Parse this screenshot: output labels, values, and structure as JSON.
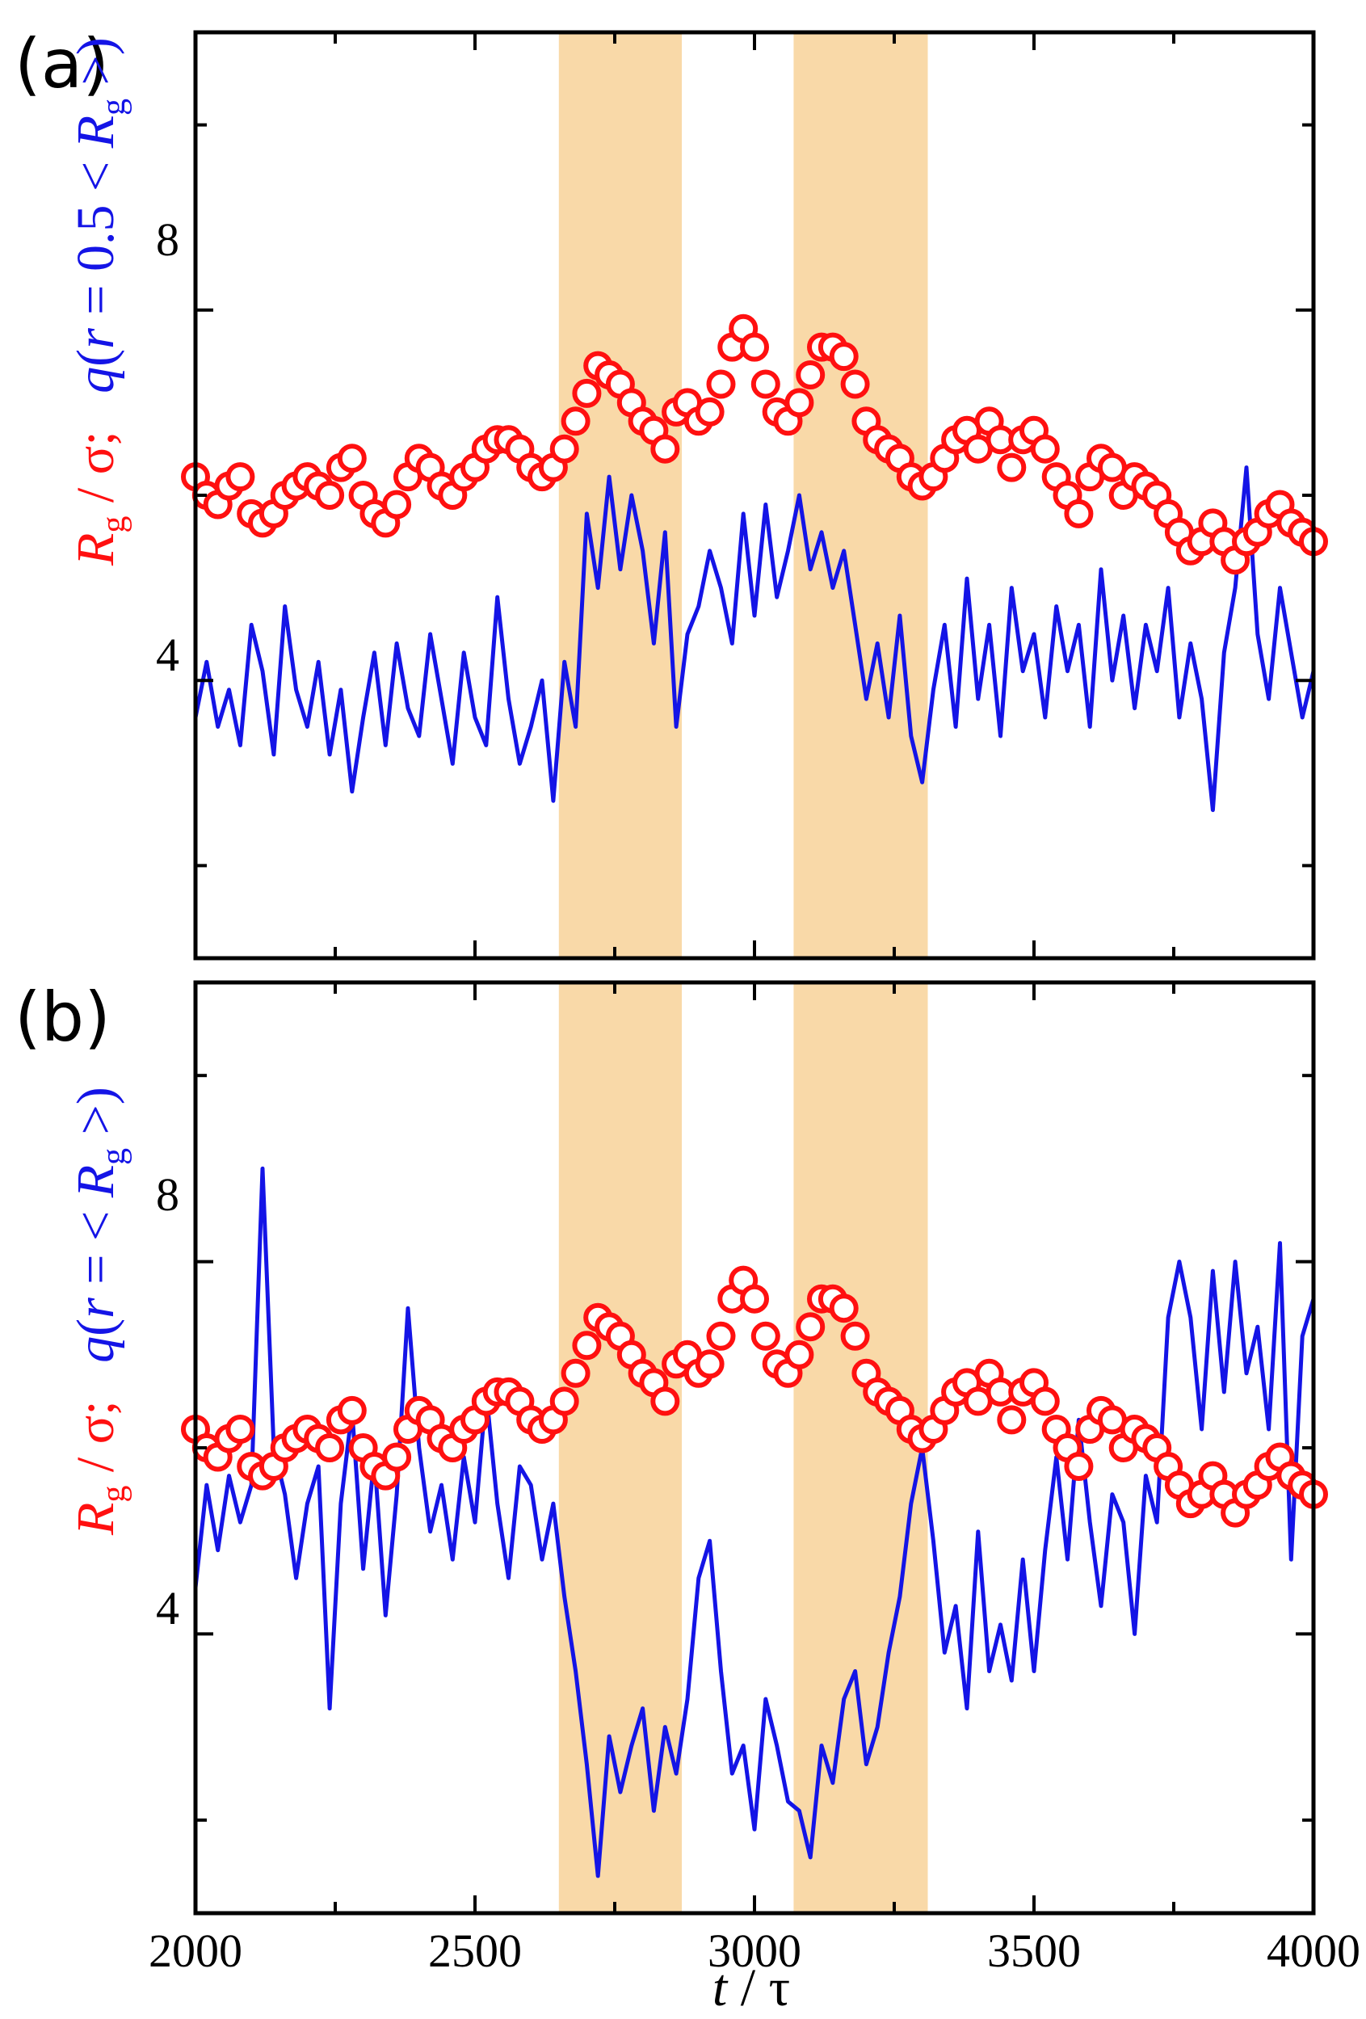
{
  "chart_data": [
    {
      "type": "scatter+line",
      "panel_label": "(a)",
      "xlim": [
        2000,
        4000
      ],
      "ylim": [
        1,
        11
      ],
      "yticks": [
        4,
        8
      ],
      "ylabel_red": "R_g / σ;",
      "ylabel_blue": "q(r = 0.5 < R_g >)",
      "highlight_bands": [
        [
          2650,
          2870
        ],
        [
          3070,
          3310
        ]
      ],
      "series": [
        {
          "name": "R_g / σ",
          "color": "#ff1010",
          "style": "open-circle",
          "x": [
            2000,
            2020,
            2040,
            2060,
            2080,
            2100,
            2120,
            2140,
            2160,
            2180,
            2200,
            2220,
            2240,
            2260,
            2280,
            2300,
            2320,
            2340,
            2360,
            2380,
            2400,
            2420,
            2440,
            2460,
            2480,
            2500,
            2520,
            2540,
            2560,
            2580,
            2600,
            2620,
            2640,
            2660,
            2680,
            2700,
            2720,
            2740,
            2760,
            2780,
            2800,
            2820,
            2840,
            2860,
            2880,
            2900,
            2920,
            2940,
            2960,
            2980,
            3000,
            3020,
            3040,
            3060,
            3080,
            3100,
            3120,
            3140,
            3160,
            3180,
            3200,
            3220,
            3240,
            3260,
            3280,
            3300,
            3320,
            3340,
            3360,
            3380,
            3400,
            3420,
            3440,
            3460,
            3480,
            3500,
            3520,
            3540,
            3560,
            3580,
            3600,
            3620,
            3640,
            3660,
            3680,
            3700,
            3720,
            3740,
            3760,
            3780,
            3800,
            3820,
            3840,
            3860,
            3880,
            3900,
            3920,
            3940,
            3960,
            3980,
            4000
          ],
          "y": [
            6.2,
            6.0,
            5.9,
            6.1,
            6.2,
            5.8,
            5.7,
            5.8,
            6.0,
            6.1,
            6.2,
            6.1,
            6.0,
            6.3,
            6.4,
            6.0,
            5.8,
            5.7,
            5.9,
            6.2,
            6.4,
            6.3,
            6.1,
            6.0,
            6.2,
            6.3,
            6.5,
            6.6,
            6.6,
            6.5,
            6.3,
            6.2,
            6.3,
            6.5,
            6.8,
            7.1,
            7.4,
            7.3,
            7.2,
            7.0,
            6.8,
            6.7,
            6.5,
            6.9,
            7.0,
            6.8,
            6.9,
            7.2,
            7.6,
            7.8,
            7.6,
            7.2,
            6.9,
            6.8,
            7.0,
            7.3,
            7.6,
            7.6,
            7.5,
            7.2,
            6.8,
            6.6,
            6.5,
            6.4,
            6.2,
            6.1,
            6.2,
            6.4,
            6.6,
            6.7,
            6.5,
            6.8,
            6.6,
            6.3,
            6.6,
            6.7,
            6.5,
            6.2,
            6.0,
            5.8,
            6.2,
            6.4,
            6.3,
            6.0,
            6.2,
            6.1,
            6.0,
            5.8,
            5.6,
            5.4,
            5.5,
            5.7,
            5.5,
            5.3,
            5.5,
            5.6,
            5.8,
            5.9,
            5.7,
            5.6,
            5.5
          ]
        },
        {
          "name": "q(r = 0.5 <R_g>)",
          "color": "#1414e6",
          "style": "line",
          "x": [
            2000,
            2020,
            2040,
            2060,
            2080,
            2100,
            2120,
            2140,
            2160,
            2180,
            2200,
            2220,
            2240,
            2260,
            2280,
            2300,
            2320,
            2340,
            2360,
            2380,
            2400,
            2420,
            2440,
            2460,
            2480,
            2500,
            2520,
            2540,
            2560,
            2580,
            2600,
            2620,
            2640,
            2660,
            2680,
            2700,
            2720,
            2740,
            2760,
            2780,
            2800,
            2820,
            2840,
            2860,
            2880,
            2900,
            2920,
            2940,
            2960,
            2980,
            3000,
            3020,
            3040,
            3060,
            3080,
            3100,
            3120,
            3140,
            3160,
            3180,
            3200,
            3220,
            3240,
            3260,
            3280,
            3300,
            3320,
            3340,
            3360,
            3380,
            3400,
            3420,
            3440,
            3460,
            3480,
            3500,
            3520,
            3540,
            3560,
            3580,
            3600,
            3620,
            3640,
            3660,
            3680,
            3700,
            3720,
            3740,
            3760,
            3780,
            3800,
            3820,
            3840,
            3860,
            3880,
            3900,
            3920,
            3940,
            3960,
            3980,
            4000
          ],
          "y": [
            3.6,
            4.2,
            3.5,
            3.9,
            3.3,
            4.6,
            4.1,
            3.2,
            4.8,
            3.9,
            3.5,
            4.2,
            3.2,
            3.9,
            2.8,
            3.6,
            4.3,
            3.3,
            4.4,
            3.7,
            3.4,
            4.5,
            3.8,
            3.1,
            4.3,
            3.6,
            3.3,
            4.9,
            3.8,
            3.1,
            3.5,
            4.0,
            2.7,
            4.2,
            3.5,
            5.8,
            5.0,
            6.2,
            5.2,
            6.0,
            5.4,
            4.4,
            5.6,
            3.5,
            4.5,
            4.8,
            5.4,
            5.0,
            4.4,
            5.8,
            4.7,
            5.9,
            4.9,
            5.4,
            6.0,
            5.2,
            5.6,
            5.0,
            5.4,
            4.6,
            3.8,
            4.4,
            3.6,
            4.7,
            3.4,
            2.9,
            3.9,
            4.6,
            3.5,
            5.1,
            3.8,
            4.6,
            3.4,
            5.0,
            4.1,
            4.5,
            3.6,
            4.8,
            4.1,
            4.6,
            3.5,
            5.2,
            4.0,
            4.7,
            3.7,
            4.6,
            4.1,
            5.0,
            3.6,
            4.4,
            3.8,
            2.6,
            4.3,
            5.0,
            6.3,
            4.5,
            3.8,
            5.0,
            4.3,
            3.6,
            4.1
          ]
        }
      ]
    },
    {
      "type": "scatter+line",
      "panel_label": "(b)",
      "xlim": [
        2000,
        4000
      ],
      "ylim": [
        1,
        11
      ],
      "yticks": [
        4,
        8
      ],
      "xticks": [
        2000,
        2500,
        3000,
        3500,
        4000
      ],
      "xlabel": "t / τ",
      "ylabel_red": "R_g / σ;",
      "ylabel_blue": "q(r = < R_g >)",
      "highlight_bands": [
        [
          2650,
          2870
        ],
        [
          3070,
          3310
        ]
      ],
      "series": [
        {
          "name": "R_g / σ",
          "color": "#ff1010",
          "style": "open-circle",
          "x": [
            2000,
            2020,
            2040,
            2060,
            2080,
            2100,
            2120,
            2140,
            2160,
            2180,
            2200,
            2220,
            2240,
            2260,
            2280,
            2300,
            2320,
            2340,
            2360,
            2380,
            2400,
            2420,
            2440,
            2460,
            2480,
            2500,
            2520,
            2540,
            2560,
            2580,
            2600,
            2620,
            2640,
            2660,
            2680,
            2700,
            2720,
            2740,
            2760,
            2780,
            2800,
            2820,
            2840,
            2860,
            2880,
            2900,
            2920,
            2940,
            2960,
            2980,
            3000,
            3020,
            3040,
            3060,
            3080,
            3100,
            3120,
            3140,
            3160,
            3180,
            3200,
            3220,
            3240,
            3260,
            3280,
            3300,
            3320,
            3340,
            3360,
            3380,
            3400,
            3420,
            3440,
            3460,
            3480,
            3500,
            3520,
            3540,
            3560,
            3580,
            3600,
            3620,
            3640,
            3660,
            3680,
            3700,
            3720,
            3740,
            3760,
            3780,
            3800,
            3820,
            3840,
            3860,
            3880,
            3900,
            3920,
            3940,
            3960,
            3980,
            4000
          ],
          "y": [
            6.2,
            6.0,
            5.9,
            6.1,
            6.2,
            5.8,
            5.7,
            5.8,
            6.0,
            6.1,
            6.2,
            6.1,
            6.0,
            6.3,
            6.4,
            6.0,
            5.8,
            5.7,
            5.9,
            6.2,
            6.4,
            6.3,
            6.1,
            6.0,
            6.2,
            6.3,
            6.5,
            6.6,
            6.6,
            6.5,
            6.3,
            6.2,
            6.3,
            6.5,
            6.8,
            7.1,
            7.4,
            7.3,
            7.2,
            7.0,
            6.8,
            6.7,
            6.5,
            6.9,
            7.0,
            6.8,
            6.9,
            7.2,
            7.6,
            7.8,
            7.6,
            7.2,
            6.9,
            6.8,
            7.0,
            7.3,
            7.6,
            7.6,
            7.5,
            7.2,
            6.8,
            6.6,
            6.5,
            6.4,
            6.2,
            6.1,
            6.2,
            6.4,
            6.6,
            6.7,
            6.5,
            6.8,
            6.6,
            6.3,
            6.6,
            6.7,
            6.5,
            6.2,
            6.0,
            5.8,
            6.2,
            6.4,
            6.3,
            6.0,
            6.2,
            6.1,
            6.0,
            5.8,
            5.6,
            5.4,
            5.5,
            5.7,
            5.5,
            5.3,
            5.5,
            5.6,
            5.8,
            5.9,
            5.7,
            5.6,
            5.5
          ]
        },
        {
          "name": "q(r = < R_g >)",
          "color": "#1414e6",
          "style": "line",
          "x": [
            2000,
            2020,
            2040,
            2060,
            2080,
            2100,
            2120,
            2140,
            2160,
            2180,
            2200,
            2220,
            2240,
            2260,
            2280,
            2300,
            2320,
            2340,
            2360,
            2380,
            2400,
            2420,
            2440,
            2460,
            2480,
            2500,
            2520,
            2540,
            2560,
            2580,
            2600,
            2620,
            2640,
            2660,
            2680,
            2700,
            2720,
            2740,
            2760,
            2780,
            2800,
            2820,
            2840,
            2860,
            2880,
            2900,
            2920,
            2940,
            2960,
            2980,
            3000,
            3020,
            3040,
            3060,
            3080,
            3100,
            3120,
            3140,
            3160,
            3180,
            3200,
            3220,
            3240,
            3260,
            3280,
            3300,
            3320,
            3340,
            3360,
            3380,
            3400,
            3420,
            3440,
            3460,
            3480,
            3500,
            3520,
            3540,
            3560,
            3580,
            3600,
            3620,
            3640,
            3660,
            3680,
            3700,
            3720,
            3740,
            3760,
            3780,
            3800,
            3820,
            3840,
            3860,
            3880,
            3900,
            3920,
            3940,
            3960,
            3980,
            4000
          ],
          "y": [
            4.5,
            5.6,
            4.9,
            5.7,
            5.2,
            5.6,
            9.0,
            6.0,
            5.5,
            4.6,
            5.4,
            5.8,
            3.2,
            5.4,
            6.4,
            4.7,
            5.9,
            4.2,
            5.5,
            7.5,
            6.0,
            5.1,
            5.6,
            4.8,
            5.9,
            5.2,
            6.6,
            5.4,
            4.6,
            5.8,
            5.6,
            4.8,
            5.4,
            4.4,
            3.6,
            2.6,
            1.4,
            2.9,
            2.3,
            2.8,
            3.2,
            2.1,
            3.0,
            2.5,
            3.3,
            4.6,
            5.0,
            3.6,
            2.5,
            2.8,
            1.9,
            3.3,
            2.8,
            2.2,
            2.1,
            1.6,
            2.8,
            2.4,
            3.3,
            3.6,
            2.6,
            3.0,
            3.8,
            4.4,
            5.4,
            6.0,
            5.0,
            3.8,
            4.3,
            3.2,
            5.1,
            3.6,
            4.1,
            3.5,
            4.8,
            3.6,
            4.9,
            5.9,
            4.8,
            6.3,
            5.2,
            4.3,
            5.5,
            5.2,
            4.0,
            5.7,
            5.2,
            7.4,
            8.0,
            7.4,
            6.2,
            7.9,
            6.6,
            8.0,
            6.8,
            7.3,
            6.2,
            8.2,
            4.8,
            7.2,
            7.6
          ]
        }
      ]
    }
  ]
}
